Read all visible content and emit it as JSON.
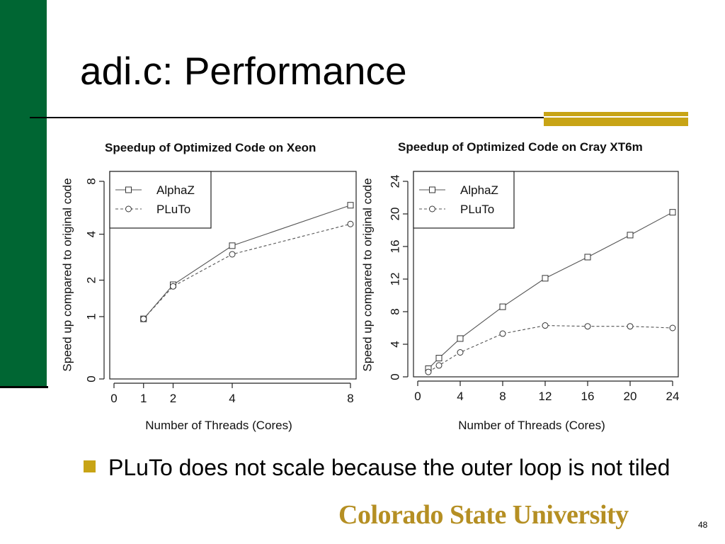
{
  "slide": {
    "title": "adi.c: Performance",
    "bullet": "PLuTo does not scale because the outer loop is not tiled",
    "logo_text": "Colorado State University",
    "page_number": "48"
  },
  "colors": {
    "left_bar": "#006633",
    "accent_gold": "#c8a415",
    "logo": "#b58f23"
  },
  "chart_data": [
    {
      "type": "line",
      "title": "Speedup of Optimized Code on Xeon",
      "xlabel": "Number of Threads (Cores)",
      "ylabel": "Speed up compared to original code",
      "y_scale": "log",
      "xlim": [
        0,
        8
      ],
      "ylim": [
        0,
        8
      ],
      "x_ticks": [
        0,
        1,
        2,
        4,
        8
      ],
      "y_ticks": [
        0,
        1,
        2,
        4,
        8
      ],
      "grid": false,
      "legend_position": "top-left",
      "series": [
        {
          "name": "AlphaZ",
          "marker": "square",
          "line": "solid",
          "x": [
            1,
            2,
            4,
            8
          ],
          "values": [
            0.95,
            1.85,
            3.4,
            5.9
          ]
        },
        {
          "name": "PLuTo",
          "marker": "circle",
          "line": "dashed",
          "x": [
            1,
            2,
            4,
            8
          ],
          "values": [
            0.95,
            1.8,
            3.0,
            4.6
          ]
        }
      ]
    },
    {
      "type": "line",
      "title": "Speedup of Optimized Code on Cray XT6m",
      "xlabel": "Number of Threads (Cores)",
      "ylabel": "Speed up compared to original code",
      "xlim": [
        0,
        24
      ],
      "ylim": [
        0,
        24
      ],
      "x_ticks": [
        0,
        4,
        8,
        12,
        16,
        20,
        24
      ],
      "y_ticks": [
        0,
        4,
        8,
        12,
        16,
        20,
        24
      ],
      "grid": false,
      "legend_position": "top-left",
      "series": [
        {
          "name": "AlphaZ",
          "marker": "square",
          "line": "solid",
          "x": [
            1,
            2,
            4,
            8,
            12,
            16,
            20,
            24
          ],
          "values": [
            1.0,
            2.3,
            4.7,
            8.6,
            12.1,
            14.7,
            17.4,
            20.2
          ]
        },
        {
          "name": "PLuTo",
          "marker": "circle",
          "line": "dashed",
          "x": [
            1,
            2,
            4,
            8,
            12,
            16,
            20,
            24
          ],
          "values": [
            0.6,
            1.4,
            3.0,
            5.3,
            6.3,
            6.2,
            6.2,
            6.0
          ]
        }
      ]
    }
  ]
}
